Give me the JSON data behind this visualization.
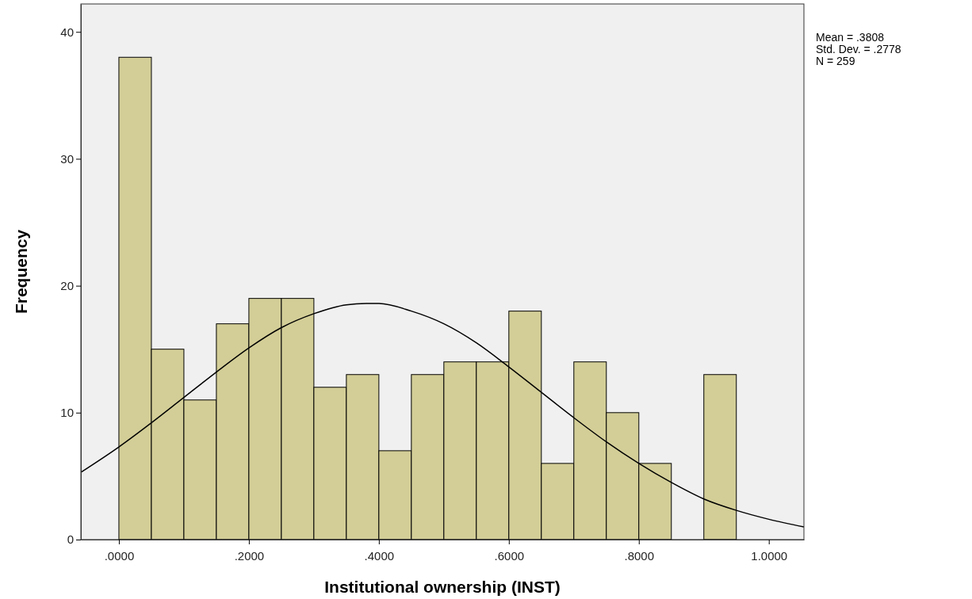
{
  "chart_data": {
    "type": "histogram",
    "xlabel": "Institutional ownership (INST)",
    "ylabel": "Frequency",
    "bins": [
      0,
      0.05,
      0.1,
      0.15,
      0.2,
      0.25,
      0.3,
      0.35,
      0.4,
      0.45,
      0.5,
      0.55,
      0.6,
      0.65,
      0.7,
      0.75,
      0.8,
      0.85,
      0.9,
      0.95
    ],
    "values": [
      38,
      15,
      11,
      17,
      19,
      19,
      12,
      13,
      7,
      13,
      14,
      14,
      18,
      6,
      14,
      10,
      6,
      0,
      13
    ],
    "color": "#d3ce97",
    "series": [
      {
        "type": "line",
        "color": "#000000",
        "x": [
          -0.0585,
          0,
          0.05,
          0.1,
          0.15,
          0.2,
          0.25,
          0.3,
          0.35,
          0.3808,
          0.4,
          0.45,
          0.5,
          0.55,
          0.6,
          0.65,
          0.7,
          0.75,
          0.8,
          0.85,
          0.9,
          0.95,
          1.0,
          1.054
        ],
        "values": [
          5.3,
          7.3,
          9.2,
          11.2,
          13.2,
          15.1,
          16.7,
          17.8,
          18.5,
          18.6,
          18.6,
          18.0,
          17.0,
          15.5,
          13.6,
          11.6,
          9.6,
          7.7,
          6.0,
          4.5,
          3.2,
          2.3,
          1.6,
          1.0
        ]
      }
    ],
    "marker": "none",
    "line_style": "solid",
    "xlim": [
      -0.0585,
      1.054
    ],
    "xticks": [
      {
        "value": 0,
        "label": ".0000"
      },
      {
        "value": 0.2,
        "label": ".2000"
      },
      {
        "value": 0.4,
        "label": ".4000"
      },
      {
        "value": 0.6,
        "label": ".6000"
      },
      {
        "value": 0.8,
        "label": ".8000"
      },
      {
        "value": 1,
        "label": "1.0000"
      }
    ],
    "ylim": [
      0,
      42.2
    ],
    "yticks": [
      0,
      10,
      20,
      30,
      40
    ],
    "grid": false,
    "annotations": [
      "Mean = .3808",
      "Std. Dev. = .2778",
      "N = 259"
    ]
  }
}
